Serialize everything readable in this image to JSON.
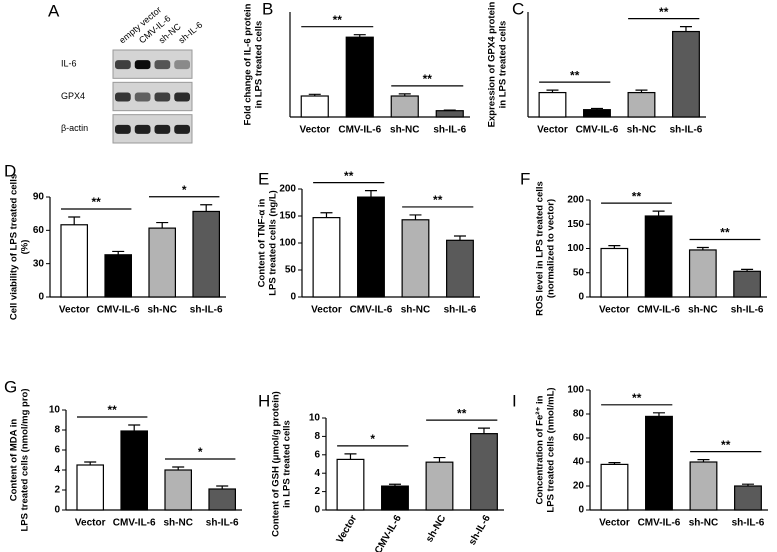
{
  "chart_data": [
    {
      "type": "blot",
      "panel": "A",
      "categories": [
        "empty vector",
        "CMV-IL-6",
        "sh-NC",
        "sh-IL-6"
      ],
      "rows": [
        "IL-6",
        "GPX4",
        "β-actin"
      ]
    },
    {
      "type": "bar",
      "panel": "B",
      "ylabel": [
        "Fold change of IL-6 protein",
        "in LPS treated cells"
      ],
      "categories": [
        "Vector",
        "CMV-IL-6",
        "sh-NC",
        "sh-IL-6"
      ],
      "values": [
        1.0,
        3.8,
        1.0,
        0.3
      ],
      "errors": [
        0.08,
        0.12,
        0.1,
        0.03
      ],
      "colors": [
        "#ffffff",
        "#000000",
        "#b3b3b3",
        "#5a5a5a"
      ],
      "ylim": [
        0,
        5
      ],
      "significance": [
        "**",
        "**"
      ]
    },
    {
      "type": "bar",
      "panel": "C",
      "ylabel": [
        "Expression of GPX4 protein",
        "in LPS treated cells"
      ],
      "categories": [
        "Vector",
        "CMV-IL-6",
        "sh-NC",
        "sh-IL-6"
      ],
      "values": [
        1.0,
        0.3,
        1.0,
        3.5
      ],
      "errors": [
        0.1,
        0.05,
        0.1,
        0.2
      ],
      "colors": [
        "#ffffff",
        "#000000",
        "#b3b3b3",
        "#5a5a5a"
      ],
      "ylim": [
        0,
        4.3
      ],
      "significance": [
        "**",
        "**"
      ]
    },
    {
      "type": "bar",
      "panel": "D",
      "ylabel": [
        "Cell viability of LPS treated cells",
        "(%)"
      ],
      "categories": [
        "Vector",
        "CMV-IL-6",
        "sh-NC",
        "sh-IL-6"
      ],
      "values": [
        65,
        38,
        62,
        77
      ],
      "errors": [
        7,
        3,
        5,
        6
      ],
      "colors": [
        "#ffffff",
        "#000000",
        "#b3b3b3",
        "#5a5a5a"
      ],
      "ylim": [
        0,
        90
      ],
      "yticks": [
        0,
        30,
        60,
        90
      ],
      "significance": [
        "**",
        "*"
      ]
    },
    {
      "type": "bar",
      "panel": "E",
      "ylabel": [
        "Content of TNF-α in",
        "LPS treated cells (ng/L)"
      ],
      "categories": [
        "Vector",
        "CMV-IL-6",
        "sh-NC",
        "sh-IL-6"
      ],
      "values": [
        147,
        185,
        143,
        105
      ],
      "errors": [
        9,
        12,
        9,
        8
      ],
      "colors": [
        "#ffffff",
        "#000000",
        "#b3b3b3",
        "#5a5a5a"
      ],
      "ylim": [
        0,
        200
      ],
      "yticks": [
        0,
        50,
        100,
        150,
        200
      ],
      "significance": [
        "**",
        "**"
      ]
    },
    {
      "type": "bar",
      "panel": "F",
      "ylabel": [
        "ROS level in LPS treated cells",
        "(normalized to vector)"
      ],
      "categories": [
        "Vector",
        "CMV-IL-6",
        "sh-NC",
        "sh-IL-6"
      ],
      "values": [
        100,
        167,
        97,
        53
      ],
      "errors": [
        6,
        10,
        5,
        4
      ],
      "colors": [
        "#ffffff",
        "#000000",
        "#b3b3b3",
        "#5a5a5a"
      ],
      "ylim": [
        0,
        200
      ],
      "yticks": [
        0,
        50,
        100,
        150,
        200
      ],
      "significance": [
        "**",
        "**"
      ]
    },
    {
      "type": "bar",
      "panel": "G",
      "ylabel": [
        "Content of MDA in",
        "LPS treated cells (nmol/mg pro)"
      ],
      "categories": [
        "Vector",
        "CMV-IL-6",
        "sh-NC",
        "sh-IL-6"
      ],
      "values": [
        4.5,
        7.9,
        4.0,
        2.1
      ],
      "errors": [
        0.3,
        0.6,
        0.3,
        0.3
      ],
      "colors": [
        "#ffffff",
        "#000000",
        "#b3b3b3",
        "#5a5a5a"
      ],
      "ylim": [
        0,
        10
      ],
      "yticks": [
        0,
        2,
        4,
        6,
        8,
        10
      ],
      "significance": [
        "**",
        "*"
      ]
    },
    {
      "type": "bar",
      "panel": "H",
      "ylabel": [
        "Content of GSH (μmol/g protein)",
        "in LPS treated cells"
      ],
      "categories": [
        "Vector",
        "CMV-IL-6",
        "sh-NC",
        "sh-IL-6"
      ],
      "values": [
        5.5,
        2.6,
        5.2,
        8.3
      ],
      "errors": [
        0.6,
        0.2,
        0.5,
        0.6
      ],
      "colors": [
        "#ffffff",
        "#000000",
        "#b3b3b3",
        "#5a5a5a"
      ],
      "ylim": [
        0,
        10
      ],
      "yticks": [
        0,
        2,
        4,
        6,
        8,
        10
      ],
      "significance": [
        "*",
        "**"
      ],
      "rotate_labels": true
    },
    {
      "type": "bar",
      "panel": "I",
      "ylabel": [
        "Concentration of Fe²⁺ in",
        "LPS treated cells (nmol/mL)"
      ],
      "categories": [
        "Vector",
        "CMV-IL-6",
        "sh-NC",
        "sh-IL-6"
      ],
      "values": [
        38,
        78,
        40,
        20
      ],
      "errors": [
        1.5,
        3,
        2,
        1.5
      ],
      "colors": [
        "#ffffff",
        "#000000",
        "#b3b3b3",
        "#5a5a5a"
      ],
      "ylim": [
        0,
        100
      ],
      "yticks": [
        0,
        20,
        40,
        60,
        80,
        100
      ],
      "significance": [
        "**",
        "**"
      ]
    }
  ]
}
